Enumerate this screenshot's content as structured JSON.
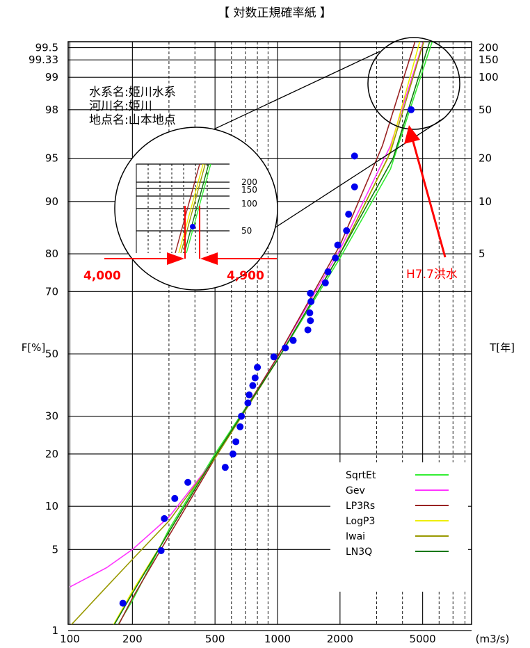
{
  "title": "【 対数正規確率紙 】",
  "info_lines": [
    "水系名:姫川水系",
    "河川名:姫川",
    "地点名:山本地点"
  ],
  "chart_data": {
    "type": "scatter",
    "x_scale": "log",
    "y_scale": "normal-probability",
    "xlim": [
      100,
      7000
    ],
    "ylim_percent": [
      1,
      99.8
    ],
    "x_unit_label": "(m3/s)",
    "ylabel_left": "F[%]",
    "ylabel_right": "T[年]",
    "x_ticks": [
      {
        "value": 100,
        "label": "100"
      },
      {
        "value": 200,
        "label": "200"
      },
      {
        "value": 500,
        "label": "500"
      },
      {
        "value": 1000,
        "label": "1000"
      },
      {
        "value": 2000,
        "label": "2000"
      },
      {
        "value": 5000,
        "label": "5000"
      }
    ],
    "f_ticks": [
      {
        "value": 1,
        "label": "1"
      },
      {
        "value": 5,
        "label": "5"
      },
      {
        "value": 10,
        "label": "10"
      },
      {
        "value": 20,
        "label": "20"
      },
      {
        "value": 30,
        "label": "30"
      },
      {
        "value": 50,
        "label": "50"
      },
      {
        "value": 70,
        "label": "70"
      },
      {
        "value": 80,
        "label": "80"
      },
      {
        "value": 90,
        "label": "90"
      },
      {
        "value": 95,
        "label": "95"
      },
      {
        "value": 98,
        "label": "98"
      },
      {
        "value": 99,
        "label": "99"
      },
      {
        "value": 99.33,
        "label": "99.33"
      },
      {
        "value": 99.5,
        "label": "99.5"
      }
    ],
    "t_ticks": [
      {
        "value": 5,
        "label": "5"
      },
      {
        "value": 10,
        "label": "10"
      },
      {
        "value": 20,
        "label": "20"
      },
      {
        "value": 50,
        "label": "50"
      },
      {
        "value": 100,
        "label": "100"
      },
      {
        "value": 150,
        "label": "150"
      },
      {
        "value": 200,
        "label": "200"
      }
    ],
    "points": [
      {
        "x": 180,
        "y": 1.8
      },
      {
        "x": 275,
        "y": 4.9
      },
      {
        "x": 285,
        "y": 8.3
      },
      {
        "x": 320,
        "y": 11.2
      },
      {
        "x": 370,
        "y": 14.0
      },
      {
        "x": 560,
        "y": 17.0
      },
      {
        "x": 610,
        "y": 20.0
      },
      {
        "x": 630,
        "y": 23.0
      },
      {
        "x": 660,
        "y": 27.0
      },
      {
        "x": 670,
        "y": 30.0
      },
      {
        "x": 720,
        "y": 34.0
      },
      {
        "x": 730,
        "y": 36.5
      },
      {
        "x": 760,
        "y": 39.5
      },
      {
        "x": 780,
        "y": 42.0
      },
      {
        "x": 800,
        "y": 45.5
      },
      {
        "x": 960,
        "y": 49.0
      },
      {
        "x": 1090,
        "y": 52.0
      },
      {
        "x": 1190,
        "y": 54.5
      },
      {
        "x": 1400,
        "y": 58.0
      },
      {
        "x": 1440,
        "y": 61.0
      },
      {
        "x": 1430,
        "y": 63.5
      },
      {
        "x": 1450,
        "y": 67.0
      },
      {
        "x": 1440,
        "y": 69.5
      },
      {
        "x": 1700,
        "y": 72.5
      },
      {
        "x": 1750,
        "y": 75.5
      },
      {
        "x": 1900,
        "y": 79.0
      },
      {
        "x": 1950,
        "y": 82.0
      },
      {
        "x": 2150,
        "y": 85.0
      },
      {
        "x": 2200,
        "y": 88.0
      },
      {
        "x": 2350,
        "y": 92.0
      },
      {
        "x": 2350,
        "y": 95.2
      },
      {
        "x": 4400,
        "y": 98.0
      }
    ],
    "series": [
      {
        "name": "SqrtEt",
        "color": "#33ee33",
        "x": [
          135,
          200,
          300,
          500,
          1000,
          2000,
          3500,
          6200
        ],
        "y": [
          0.5,
          1.9,
          7.0,
          20.0,
          48.0,
          79.0,
          94.0,
          99.8
        ]
      },
      {
        "name": "Gev",
        "color": "#ff33ff",
        "x": [
          100,
          150,
          200,
          300,
          500,
          1000,
          2000,
          3500,
          5600
        ],
        "y": [
          2.5,
          3.6,
          5.0,
          8.5,
          19.0,
          49.0,
          81.0,
          96.0,
          99.8
        ]
      },
      {
        "name": "LP3Rs",
        "color": "#992222",
        "x": [
          140,
          200,
          300,
          500,
          1000,
          2000,
          3200,
          5100
        ],
        "y": [
          0.5,
          2.0,
          6.3,
          19.0,
          49.0,
          82.0,
          96.0,
          99.8
        ]
      },
      {
        "name": "LogP3",
        "color": "#eeee00",
        "x": [
          130,
          200,
          300,
          500,
          1000,
          2000,
          3400,
          5300
        ],
        "y": [
          0.5,
          2.3,
          6.7,
          19.5,
          48.0,
          80.0,
          95.0,
          99.8
        ]
      },
      {
        "name": "Iwai",
        "color": "#999900",
        "x": [
          100,
          150,
          200,
          300,
          500,
          1000,
          2000,
          3500,
          5600
        ],
        "y": [
          1.1,
          2.5,
          4.2,
          8.0,
          19.0,
          48.0,
          80.0,
          95.5,
          99.8
        ]
      },
      {
        "name": "LN3Q",
        "color": "#117711",
        "x": [
          130,
          200,
          300,
          500,
          1000,
          2000,
          3600,
          6000
        ],
        "y": [
          0.5,
          2.2,
          6.7,
          19.5,
          48.0,
          80.0,
          95.0,
          99.8
        ]
      }
    ],
    "annotations": {
      "flood_label": "H7.7洪水",
      "left_value": "4,000",
      "right_value": "4,900",
      "inset_t_labels": [
        "200",
        "150",
        "100",
        "50"
      ]
    },
    "grid": true,
    "legend_position": "bottom-right"
  }
}
